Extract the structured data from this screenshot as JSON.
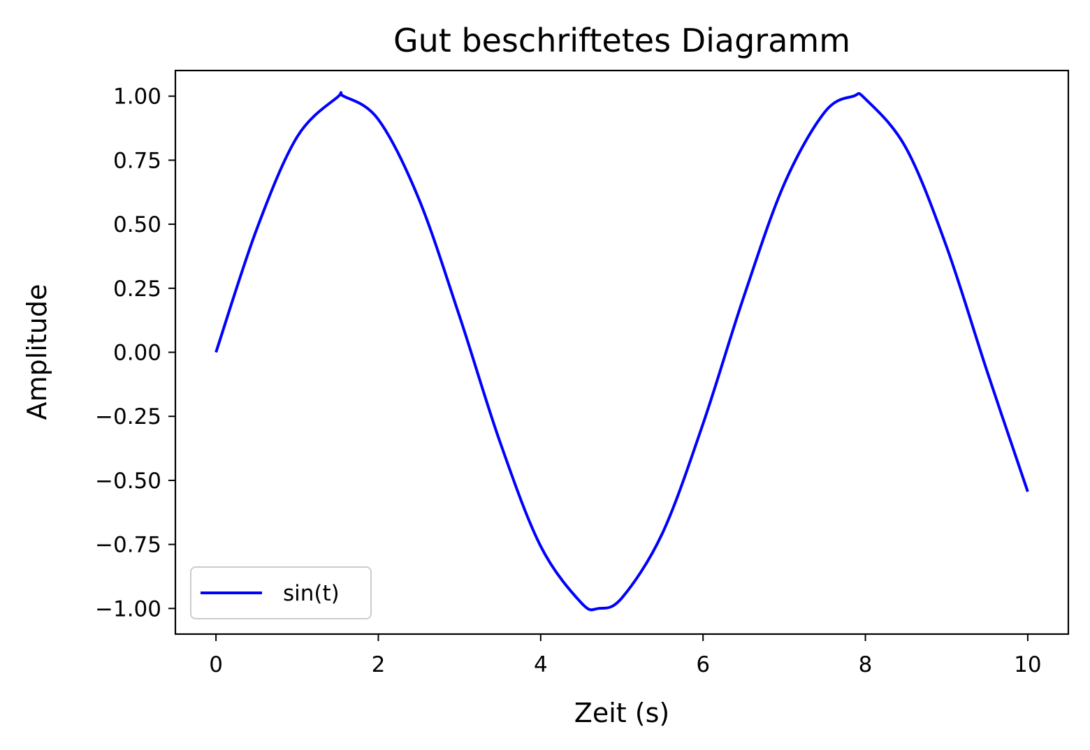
{
  "chart_data": {
    "type": "line",
    "title": "Gut beschriftetes Diagramm",
    "xlabel": "Zeit (s)",
    "ylabel": "Amplitude",
    "xlim": [
      -0.5,
      10.5
    ],
    "ylim": [
      -1.1,
      1.1
    ],
    "x_ticks": [
      0,
      2,
      4,
      6,
      8,
      10
    ],
    "x_tick_labels": [
      "0",
      "2",
      "4",
      "6",
      "8",
      "10"
    ],
    "y_ticks": [
      1.0,
      0.75,
      0.5,
      0.25,
      0.0,
      -0.25,
      -0.5,
      -0.75,
      -1.0
    ],
    "y_tick_labels": [
      "1.00",
      "0.75",
      "0.50",
      "0.25",
      "0.00",
      "−0.25",
      "−0.50",
      "−0.75",
      "−1.00"
    ],
    "grid": false,
    "legend_position": "lower-left",
    "series": [
      {
        "name": "sin(t)",
        "color": "#0000ff",
        "x": [
          0.0,
          0.5,
          1.0,
          1.5,
          1.571,
          2.0,
          2.5,
          3.0,
          3.5,
          4.0,
          4.5,
          4.712,
          5.0,
          5.5,
          6.0,
          6.5,
          7.0,
          7.5,
          7.854,
          8.0,
          8.5,
          9.0,
          9.5,
          10.0
        ],
        "y": [
          0.0,
          0.479,
          0.841,
          0.997,
          1.0,
          0.909,
          0.598,
          0.141,
          -0.351,
          -0.757,
          -0.978,
          -1.0,
          -0.959,
          -0.706,
          -0.279,
          0.215,
          0.657,
          0.938,
          1.0,
          0.989,
          0.798,
          0.412,
          -0.075,
          -0.544
        ]
      }
    ]
  }
}
